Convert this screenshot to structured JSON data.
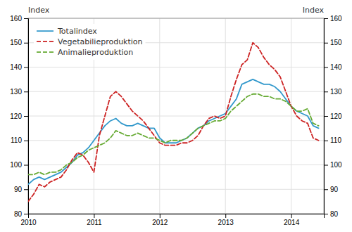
{
  "chart_data": {
    "type": "line",
    "ylabel": "Index",
    "y2label": "Index",
    "x": [
      2010,
      2010.0833333333333,
      2010.1666666666667,
      2010.25,
      2010.3333333333333,
      2010.4166666666667,
      2010.5,
      2010.5833333333333,
      2010.6666666666667,
      2010.75,
      2010.8333333333333,
      2010.9166666666667,
      2011,
      2011.0833333333333,
      2011.1666666666667,
      2011.25,
      2011.3333333333333,
      2011.4166666666667,
      2011.5,
      2011.5833333333333,
      2011.6666666666667,
      2011.75,
      2011.8333333333333,
      2011.9166666666667,
      2012,
      2012.0833333333333,
      2012.1666666666667,
      2012.25,
      2012.3333333333333,
      2012.4166666666667,
      2012.5,
      2012.5833333333333,
      2012.6666666666667,
      2012.75,
      2012.8333333333333,
      2012.9166666666667,
      2013,
      2013.0833333333333,
      2013.1666666666667,
      2013.25,
      2013.3333333333333,
      2013.4166666666667,
      2013.5,
      2013.5833333333333,
      2013.6666666666667,
      2013.75,
      2013.8333333333333,
      2013.9166666666667,
      2014,
      2014.0833333333333,
      2014.1666666666667,
      2014.25,
      2014.3333333333333,
      2014.4166666666667
    ],
    "xlim": [
      2010,
      2014.4966666666667
    ],
    "xticks": [
      2010,
      2011,
      2012,
      2013,
      2014
    ],
    "ylim": [
      80,
      160
    ],
    "yticks": [
      80,
      90,
      100,
      110,
      120,
      130,
      140,
      150,
      160
    ],
    "y2lim": [
      80,
      160
    ],
    "y2ticks": [
      80,
      90,
      100,
      110,
      120,
      130,
      140,
      150,
      160
    ],
    "grid": true,
    "legend": "upper left",
    "series": [
      {
        "name": "Totalindex",
        "color": "#3399cc",
        "line_style": "solid",
        "values": [
          92,
          94,
          95,
          94,
          95,
          96,
          97,
          99,
          101,
          104,
          105,
          107,
          110,
          113,
          116,
          118,
          119,
          117,
          116,
          116,
          117,
          116,
          115,
          115,
          111,
          109,
          109,
          109,
          110,
          111,
          113,
          115,
          116,
          118,
          119,
          120,
          121,
          124,
          127,
          133,
          134,
          135,
          134,
          133,
          133,
          132,
          130,
          127,
          124,
          122,
          121,
          120,
          116,
          115
        ]
      },
      {
        "name": "Vegetabilieproduktion",
        "color": "#cc2222",
        "line_style": "dashed",
        "values": [
          85,
          88,
          92,
          91,
          93,
          94,
          95,
          98,
          102,
          105,
          104,
          101,
          97,
          112,
          120,
          128,
          130,
          128,
          125,
          122,
          120,
          118,
          115,
          112,
          109,
          108,
          108,
          108,
          109,
          109,
          110,
          112,
          116,
          119,
          120,
          119,
          120,
          128,
          135,
          141,
          143,
          150,
          148,
          144,
          141,
          139,
          136,
          130,
          124,
          120,
          118,
          117,
          111,
          110
        ]
      },
      {
        "name": "Animalieproduktion",
        "color": "#66aa33",
        "line_style": "dashed",
        "values": [
          96,
          96,
          97,
          96,
          97,
          97,
          98,
          100,
          101,
          103,
          104,
          106,
          107,
          108,
          109,
          111,
          114,
          113,
          112,
          112,
          113,
          112,
          111,
          111,
          110,
          109,
          110,
          110,
          110,
          111,
          113,
          115,
          116,
          117,
          118,
          118,
          119,
          122,
          124,
          126,
          128,
          129,
          129,
          128,
          128,
          127,
          127,
          126,
          124,
          122,
          122,
          123,
          117,
          116
        ]
      }
    ]
  }
}
